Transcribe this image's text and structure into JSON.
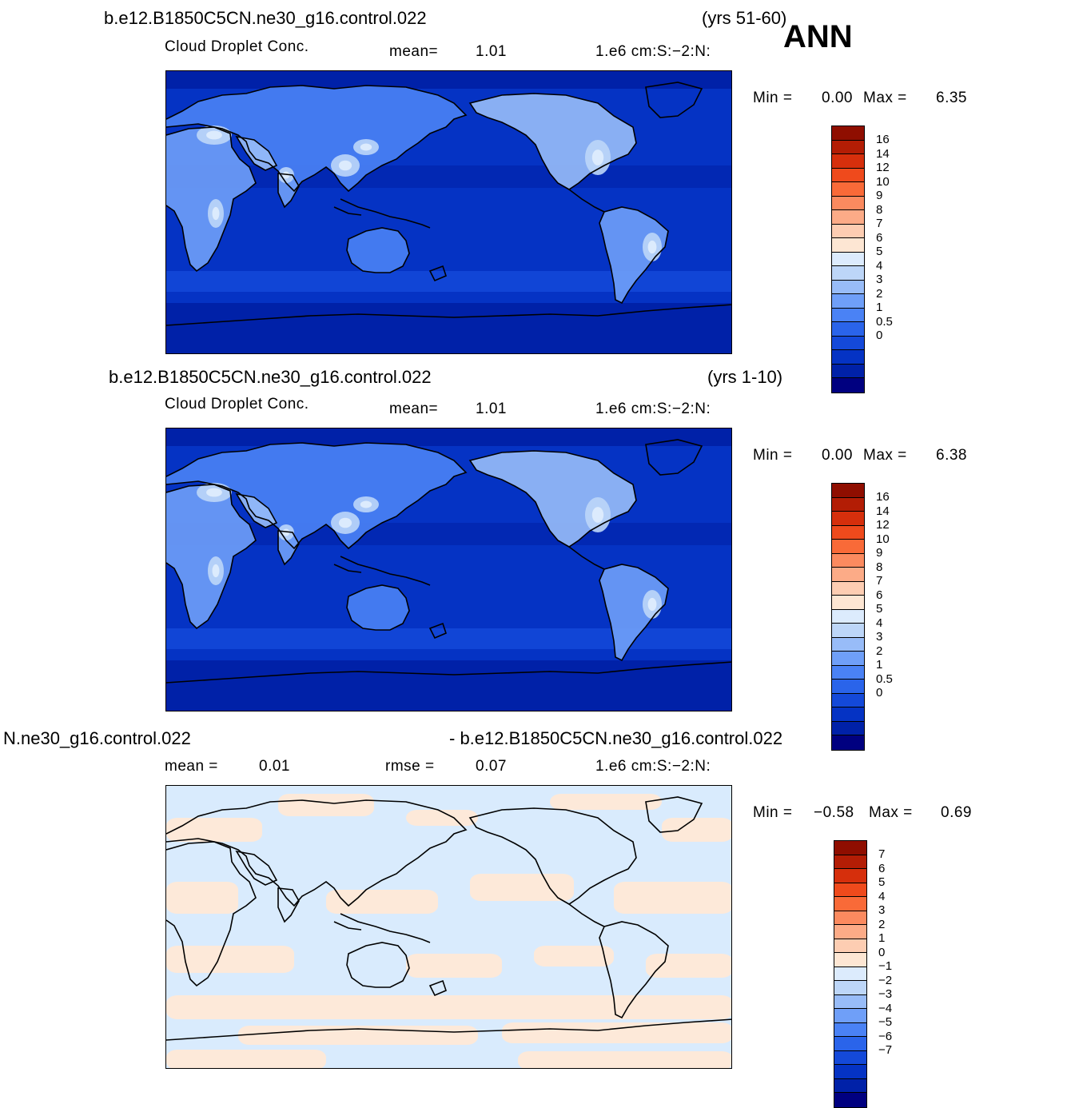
{
  "season": "ANN",
  "palette": {
    "blues": [
      "#000080",
      "#0021a8",
      "#0533c4",
      "#1449d9",
      "#2a64ea",
      "#4a82f5",
      "#6f9ff8",
      "#98bcf8",
      "#bdd6f8",
      "#dcebfd"
    ],
    "reds": [
      "#fde6d3",
      "#fdcdb2",
      "#fcab87",
      "#fb8a5f",
      "#f96a38",
      "#ef4a1c",
      "#d62f0c",
      "#b31d05",
      "#8f0e00"
    ],
    "ocean_main": "#0533c4",
    "ocean_light": "#1449d9",
    "ocean_dark": "#0021a8",
    "diff_pos": "#fde9d9",
    "diff_neg": "#d9ebfd",
    "coast": "#000000"
  },
  "panels": [
    {
      "case_title": "b.e12.B1850C5CN.ne30_g16.control.022",
      "years": "(yrs 51-60)",
      "variable": "Cloud Droplet Conc.",
      "mean_label": "mean=",
      "mean_value": "1.01",
      "units": "1.e6 cm:S:−2:N:",
      "min_label": "Min  =",
      "min_value": "0.00",
      "max_label": "Max  =",
      "max_value": "6.35",
      "colorbar_labels": [
        "16",
        "14",
        "12",
        "10",
        "9",
        "8",
        "7",
        "6",
        "5",
        "4",
        "3",
        "2",
        "1",
        "0.5",
        "0"
      ]
    },
    {
      "case_title": "b.e12.B1850C5CN.ne30_g16.control.022",
      "years": "(yrs 1-10)",
      "variable": "Cloud Droplet Conc.",
      "mean_label": "mean=",
      "mean_value": "1.01",
      "units": "1.e6 cm:S:−2:N:",
      "min_label": "Min  =",
      "min_value": "0.00",
      "max_label": "Max  =",
      "max_value": "6.38",
      "colorbar_labels": [
        "16",
        "14",
        "12",
        "10",
        "9",
        "8",
        "7",
        "6",
        "5",
        "4",
        "3",
        "2",
        "1",
        "0.5",
        "0"
      ]
    },
    {
      "case_title_left": "N.ne30_g16.control.022",
      "case_title_right": "- b.e12.B1850C5CN.ne30_g16.control.022",
      "mean_label": "mean  =",
      "mean_value": "0.01",
      "rmse_label": "rmse  =",
      "rmse_value": "0.07",
      "units": "1.e6 cm:S:−2:N:",
      "min_label": "Min  =",
      "min_value": "−0.58",
      "max_label": "Max  =",
      "max_value": "0.69",
      "colorbar_labels": [
        "7",
        "6",
        "5",
        "4",
        "3",
        "2",
        "1",
        "0",
        "−1",
        "−2",
        "−3",
        "−4",
        "−5",
        "−6",
        "−7"
      ]
    }
  ]
}
